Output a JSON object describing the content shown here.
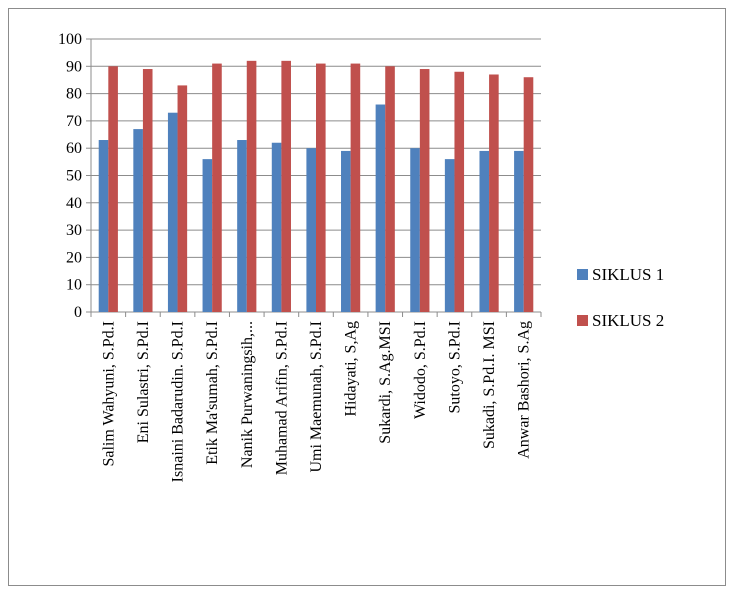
{
  "chart_data": {
    "type": "bar",
    "categories": [
      "Salim Wahyuni, S.Pd.I",
      "Eni Sulastri, S.Pd.I",
      "Isnaini Badarudin. S.Pd.I",
      "Etik Ma'sumah, S.Pd.I",
      "Nanik Purwaningsih,...",
      "Muhamad Arifin, S.Pd.I",
      "Umi Maemunah, S.Pd.I",
      "Hidayati, S,Ag",
      "Sukardi, S.Ag.MSI",
      "Widodo, S.Pd.I",
      "Sutoyo, S.Pd.I",
      "Sukadi, S.Pd.I. MSI",
      "Anwar Bashori, S.Ag"
    ],
    "series": [
      {
        "name": "SIKLUS 1",
        "color": "#4f81bd",
        "values": [
          63,
          67,
          73,
          56,
          63,
          62,
          60,
          59,
          76,
          60,
          56,
          59,
          59
        ]
      },
      {
        "name": "SIKLUS 2",
        "color": "#c0504d",
        "values": [
          90,
          89,
          83,
          91,
          92,
          92,
          91,
          91,
          90,
          89,
          88,
          87,
          86
        ]
      }
    ],
    "ylim": [
      0,
      100
    ],
    "yticks": [
      "0",
      "10",
      "20",
      "30",
      "40",
      "50",
      "60",
      "70",
      "80",
      "90",
      "100"
    ],
    "grid": true,
    "legend_position": "right"
  }
}
